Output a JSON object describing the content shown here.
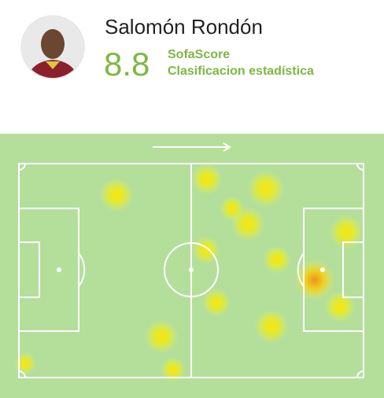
{
  "header": {
    "name": "Salomón Rondón",
    "rating": 8.8,
    "source": "SofaScore",
    "rating_label": "Clasificacion estadística"
  }
}
